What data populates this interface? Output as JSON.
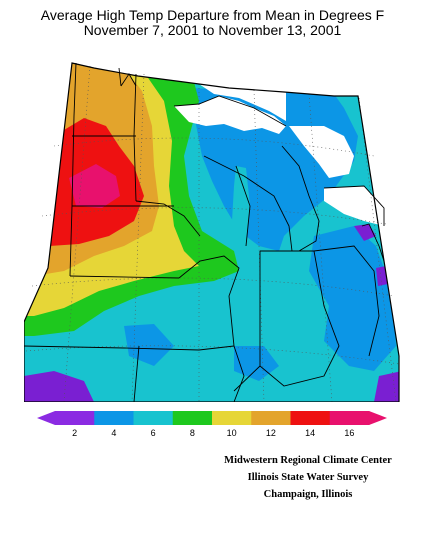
{
  "title": {
    "line1": "Average High Temp Departure from Mean in Degrees F",
    "line2": "November 7, 2001 to November 13, 2001"
  },
  "legend": {
    "ticks": [
      "2",
      "4",
      "6",
      "8",
      "10",
      "12",
      "14",
      "16"
    ],
    "colors": [
      "#8b2be2",
      "#6a1fd0",
      "#0c96e6",
      "#18c3cf",
      "#1ec81e",
      "#e6d637",
      "#e3a42c",
      "#ee1111",
      "#e8116d",
      "#e8116d"
    ]
  },
  "map": {
    "colors": {
      "purple": "#7a1fd2",
      "blue": "#0c96e6",
      "cyan": "#18c3cf",
      "green": "#1ec81e",
      "yellow": "#e6d637",
      "orange": "#e3a42c",
      "red": "#ee1111",
      "magenta": "#e8116d",
      "lake": "#ffffff"
    }
  },
  "credits": {
    "line1": "Midwestern Regional Climate Center",
    "line2": "Illinois State Water Survey",
    "line3": "Champaign, Illinois"
  }
}
